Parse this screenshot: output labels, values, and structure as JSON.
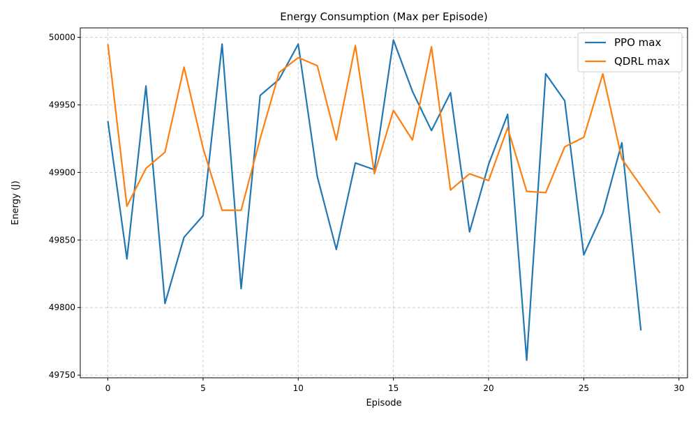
{
  "chart_data": {
    "type": "line",
    "title": "Energy Consumption (Max per Episode)",
    "xlabel": "Episode",
    "ylabel": "Energy (J)",
    "xlim": [
      -1.45,
      30.45
    ],
    "ylim": [
      49748,
      50007
    ],
    "xticks": [
      0,
      5,
      10,
      15,
      20,
      25,
      30
    ],
    "yticks": [
      49750,
      49800,
      49850,
      49900,
      49950,
      50000
    ],
    "grid": true,
    "legend_position": "top-right",
    "series": [
      {
        "name": "PPO max",
        "color": "#1f77b4",
        "x": [
          0,
          1,
          2,
          3,
          4,
          5,
          6,
          7,
          8,
          9,
          10,
          11,
          12,
          13,
          14,
          15,
          16,
          17,
          18,
          19,
          20,
          21,
          22,
          23,
          24,
          25,
          26,
          27,
          28
        ],
        "y": [
          49938,
          49836,
          49964,
          49803,
          49852,
          49868,
          49995,
          49814,
          49957,
          49969,
          49995,
          49897,
          49843,
          49907,
          49902,
          49998,
          49960,
          49931,
          49959,
          49856,
          49906,
          49943,
          49761,
          49973,
          49953,
          49839,
          49870,
          49922,
          49783
        ]
      },
      {
        "name": "QDRL max",
        "color": "#ff7f0e",
        "x": [
          0,
          1,
          2,
          3,
          4,
          5,
          6,
          7,
          8,
          9,
          10,
          11,
          12,
          13,
          14,
          15,
          16,
          17,
          18,
          19,
          20,
          21,
          22,
          23,
          24,
          25,
          26,
          27,
          28,
          29
        ],
        "y": [
          49995,
          49875,
          49903,
          49915,
          49978,
          49918,
          49872,
          49872,
          49925,
          49974,
          49985,
          49979,
          49924,
          49994,
          49899,
          49946,
          49924,
          49993,
          49887,
          49899,
          49894,
          49933,
          49886,
          49885,
          49919,
          49926,
          49973,
          49910,
          49890,
          49870
        ]
      }
    ]
  }
}
